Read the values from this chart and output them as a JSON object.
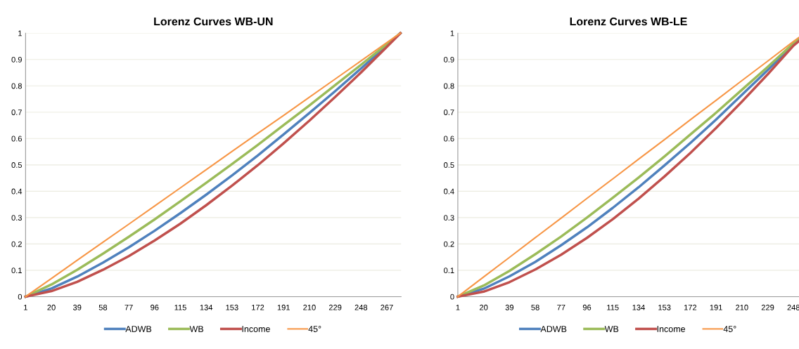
{
  "chart_data": [
    {
      "type": "line",
      "title": "Lorenz Curves WB-UN",
      "x": [
        1,
        20,
        39,
        58,
        77,
        96,
        115,
        134,
        153,
        172,
        191,
        210,
        229,
        248,
        267,
        277
      ],
      "series": [
        {
          "name": "ADWB",
          "color": "#4f81bd",
          "values": [
            0,
            0.031,
            0.076,
            0.129,
            0.187,
            0.25,
            0.317,
            0.387,
            0.46,
            0.536,
            0.616,
            0.697,
            0.78,
            0.866,
            0.953,
            1
          ]
        },
        {
          "name": "WB",
          "color": "#9bbb59",
          "values": [
            0,
            0.046,
            0.102,
            0.163,
            0.227,
            0.293,
            0.362,
            0.432,
            0.503,
            0.576,
            0.651,
            0.726,
            0.803,
            0.88,
            0.958,
            1
          ]
        },
        {
          "name": "Income",
          "color": "#c0504d",
          "values": [
            0,
            0.021,
            0.056,
            0.102,
            0.154,
            0.213,
            0.277,
            0.347,
            0.421,
            0.499,
            0.582,
            0.668,
            0.758,
            0.851,
            0.948,
            1
          ]
        },
        {
          "name": "45°",
          "color": "#f79646",
          "values": [
            0,
            0.069,
            0.138,
            0.207,
            0.275,
            0.344,
            0.413,
            0.482,
            0.551,
            0.62,
            0.688,
            0.757,
            0.826,
            0.895,
            0.964,
            1
          ]
        }
      ],
      "xlim": [
        1,
        277.5
      ],
      "xticks": [
        1,
        20,
        39,
        58,
        77,
        96,
        115,
        134,
        153,
        172,
        191,
        210,
        229,
        248,
        267
      ],
      "ylim": [
        0,
        1
      ],
      "yticks": [
        0,
        0.1,
        0.2,
        0.3,
        0.4,
        0.5,
        0.6,
        0.7,
        0.8,
        0.9,
        1
      ],
      "grid": "y",
      "legend": "bottom"
    },
    {
      "type": "line",
      "title": "Lorenz Curves WB-LE",
      "x": [
        1,
        20,
        39,
        58,
        77,
        96,
        115,
        134,
        153,
        172,
        191,
        210,
        229,
        248,
        252
      ],
      "series": [
        {
          "name": "ADWB",
          "color": "#4f81bd",
          "values": [
            0,
            0.03,
            0.077,
            0.132,
            0.195,
            0.263,
            0.337,
            0.415,
            0.498,
            0.583,
            0.672,
            0.766,
            0.86,
            0.958,
            0.975
          ]
        },
        {
          "name": "WB",
          "color": "#9bbb59",
          "values": [
            0,
            0.042,
            0.098,
            0.161,
            0.228,
            0.3,
            0.375,
            0.452,
            0.532,
            0.615,
            0.698,
            0.785,
            0.872,
            0.962,
            0.979
          ]
        },
        {
          "name": "Income",
          "color": "#c0504d",
          "values": [
            0,
            0.019,
            0.055,
            0.103,
            0.159,
            0.223,
            0.294,
            0.372,
            0.456,
            0.545,
            0.64,
            0.74,
            0.844,
            0.953,
            0.97
          ]
        },
        {
          "name": "45°",
          "color": "#f79646",
          "values": [
            0,
            0.075,
            0.149,
            0.224,
            0.298,
            0.373,
            0.447,
            0.522,
            0.596,
            0.671,
            0.745,
            0.82,
            0.894,
            0.969,
            0.984
          ]
        }
      ],
      "xlim": [
        1,
        252
      ],
      "xticks": [
        1,
        20,
        39,
        58,
        77,
        96,
        115,
        134,
        153,
        172,
        191,
        210,
        229,
        248
      ],
      "ylim": [
        0,
        1
      ],
      "yticks": [
        0,
        0.1,
        0.2,
        0.3,
        0.4,
        0.5,
        0.6,
        0.7,
        0.8,
        0.9,
        1
      ],
      "grid": "y",
      "legend": "bottom"
    }
  ]
}
